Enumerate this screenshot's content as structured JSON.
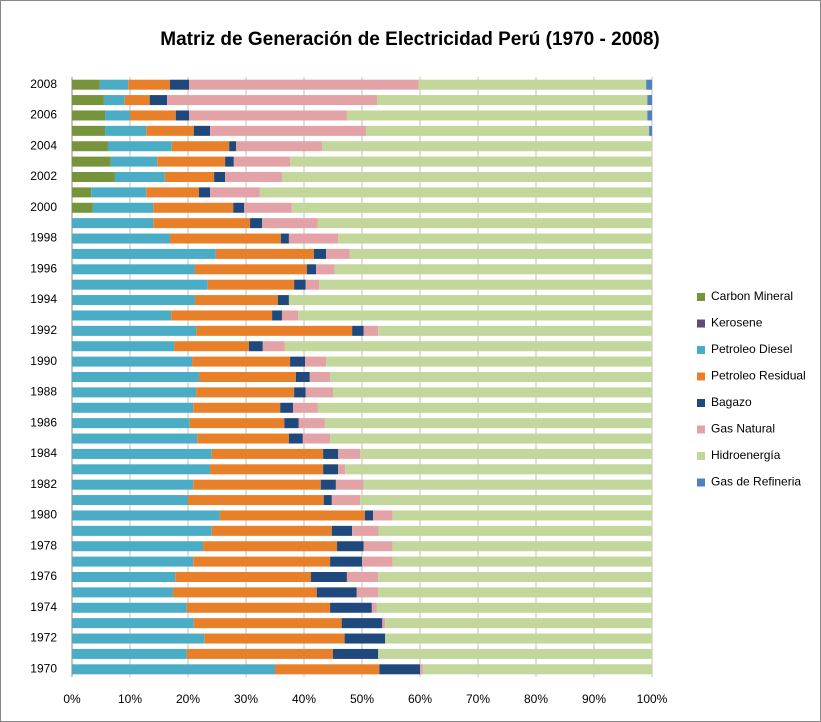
{
  "chart_data": {
    "type": "stacked_barh",
    "title": "Matriz de Generación de Electricidad Perú (1970 - 2008)",
    "categories": [
      "1970",
      null,
      "1972",
      null,
      "1974",
      null,
      "1976",
      null,
      "1978",
      null,
      "1980",
      null,
      "1982",
      null,
      "1984",
      null,
      "1986",
      null,
      "1988",
      null,
      "1990",
      null,
      "1992",
      null,
      "1994",
      null,
      "1996",
      null,
      "1998",
      null,
      "2000",
      null,
      "2002",
      null,
      "2004",
      null,
      "2006",
      null,
      "2008"
    ],
    "series": [
      {
        "name": "Carbon Mineral",
        "color": "#77933c",
        "values": [
          0,
          0,
          0,
          0,
          0,
          0,
          0,
          0,
          0,
          0,
          0,
          0,
          0,
          0,
          0,
          0,
          0,
          0,
          0,
          0,
          0,
          0,
          0,
          0,
          0,
          0,
          0,
          0,
          0,
          0,
          3.6,
          3.3,
          7.4,
          6.7,
          6.2,
          5.7,
          5.7,
          5.5,
          4.8
        ]
      },
      {
        "name": "Kerosene",
        "color": "#604a7b",
        "values": [
          0,
          0,
          0,
          0,
          0,
          0,
          0,
          0,
          0,
          0,
          0,
          0,
          0,
          0,
          0,
          0,
          0,
          0,
          0,
          0,
          0,
          0,
          0,
          0,
          0,
          0,
          0,
          0,
          0,
          0,
          0,
          0,
          0,
          0,
          0,
          0,
          0,
          0,
          0
        ]
      },
      {
        "name": "Petroleo Diesel",
        "color": "#4bacc6",
        "values": [
          35,
          19.8,
          22.8,
          21,
          19.8,
          17.4,
          17.8,
          20.9,
          22.6,
          24.1,
          25.5,
          20,
          20.9,
          23.8,
          24.1,
          21.6,
          20.3,
          20.9,
          21.4,
          21.9,
          20.7,
          17.6,
          21.4,
          17.1,
          21.2,
          23.4,
          21.2,
          24.8,
          16.9,
          14,
          10.4,
          9.5,
          8.6,
          8,
          11,
          7.1,
          4.3,
          3.6,
          4.9
        ]
      },
      {
        "name": "Petroleo Residual",
        "color": "#e8802a",
        "values": [
          18,
          25.2,
          24.2,
          25.5,
          24.7,
          24.8,
          23.4,
          23.6,
          23.1,
          20.7,
          25,
          23.4,
          22,
          19.5,
          19.2,
          15.8,
          16.3,
          15,
          16.9,
          16.7,
          16.9,
          12.9,
          26.9,
          17.4,
          14.3,
          14.9,
          19.3,
          16.9,
          19.1,
          16.7,
          13.8,
          9.1,
          8.5,
          11.7,
          9.9,
          8.2,
          7.9,
          4.3,
          7.2
        ]
      },
      {
        "name": "Bagazo",
        "color": "#1f497d",
        "values": [
          7,
          7.8,
          7,
          7,
          7.2,
          6.9,
          6.2,
          5.5,
          4.6,
          3.5,
          1.4,
          1.4,
          2.6,
          2.6,
          2.6,
          2.4,
          2.5,
          2.2,
          2,
          2.4,
          2.6,
          2.4,
          2,
          1.7,
          1.9,
          2,
          1.6,
          2.1,
          1.4,
          2.1,
          1.9,
          1.9,
          1.9,
          1.5,
          1.2,
          2.8,
          2.3,
          3,
          3.3
        ]
      },
      {
        "name": "Gas Natural",
        "color": "#e3a3a6",
        "values": [
          0.5,
          0,
          0,
          0.5,
          0.8,
          3.7,
          5.4,
          5.3,
          5,
          4.6,
          3.4,
          4.9,
          4.8,
          1.2,
          3.8,
          4.7,
          4.5,
          4.3,
          4.7,
          3.5,
          3.6,
          3.8,
          2.5,
          2.8,
          0,
          2.3,
          3.2,
          4.1,
          8.5,
          9.6,
          8.2,
          8.6,
          9.8,
          9.7,
          14.8,
          26.9,
          27.2,
          36.2,
          39.6
        ]
      },
      {
        "name": "Hidroenergía",
        "color": "#c3d69b",
        "values": [
          39.5,
          47.2,
          46,
          46,
          47.5,
          47.2,
          47.2,
          44.7,
          44.7,
          47.1,
          44.7,
          50.3,
          49.7,
          52.9,
          50.3,
          55.5,
          56.4,
          57.6,
          55,
          55.5,
          56.2,
          63.3,
          47.2,
          61,
          62.6,
          57.4,
          54.7,
          52.1,
          54.1,
          57.6,
          62.1,
          67.6,
          63.8,
          62.4,
          56.9,
          48.8,
          51.8,
          46.6,
          39.2
        ]
      },
      {
        "name": "Gas de Refineria",
        "color": "#4f81bd",
        "values": [
          0,
          0,
          0,
          0,
          0,
          0,
          0,
          0,
          0,
          0,
          0,
          0,
          0,
          0,
          0,
          0,
          0,
          0,
          0,
          0,
          0,
          0,
          0,
          0,
          0,
          0,
          0,
          0,
          0,
          0,
          0,
          0,
          0,
          0,
          0,
          0.5,
          0.8,
          0.8,
          1
        ]
      }
    ],
    "xlim": [
      0,
      100
    ],
    "xticks": [
      {
        "value": 0,
        "label": "0%"
      },
      {
        "value": 10,
        "label": "10%"
      },
      {
        "value": 20,
        "label": "20%"
      },
      {
        "value": 30,
        "label": "30%"
      },
      {
        "value": 40,
        "label": "40%"
      },
      {
        "value": 50,
        "label": "50%"
      },
      {
        "value": 60,
        "label": "60%"
      },
      {
        "value": 70,
        "label": "70%"
      },
      {
        "value": 80,
        "label": "80%"
      },
      {
        "value": 90,
        "label": "90%"
      },
      {
        "value": 100,
        "label": "100%"
      }
    ],
    "grid": true,
    "legend": "right"
  }
}
